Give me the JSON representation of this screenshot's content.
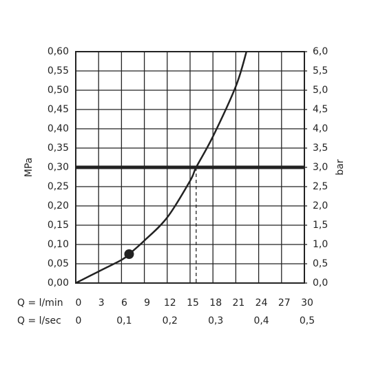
{
  "chart_data": {
    "type": "line",
    "x_label": "Q = l/min",
    "x2_label": "Q = l/sec",
    "y_label": "MPa",
    "y2_label": "bar",
    "xlim": [
      0,
      30
    ],
    "xticks": [
      0,
      3,
      6,
      9,
      12,
      15,
      18,
      21,
      24,
      27,
      30
    ],
    "x2lim": [
      0,
      0.5
    ],
    "x2ticks": [
      0,
      {
        "value": 0.1,
        "label": "0,1"
      },
      {
        "value": 0.2,
        "label": "0,2"
      },
      {
        "value": 0.3,
        "label": "0,3"
      },
      {
        "value": 0.4,
        "label": "0,4"
      },
      {
        "value": 0.5,
        "label": "0,5"
      }
    ],
    "ylim": [
      0,
      0.6
    ],
    "yticks": [
      {
        "value": 0,
        "label": "0,00"
      },
      {
        "value": 0.05,
        "label": "0,05"
      },
      {
        "value": 0.1,
        "label": "0,10"
      },
      {
        "value": 0.15,
        "label": "0,15"
      },
      {
        "value": 0.2,
        "label": "0,20"
      },
      {
        "value": 0.25,
        "label": "0,25"
      },
      {
        "value": 0.3,
        "label": "0,30"
      },
      {
        "value": 0.35,
        "label": "0,35"
      },
      {
        "value": 0.4,
        "label": "0,40"
      },
      {
        "value": 0.45,
        "label": "0,45"
      },
      {
        "value": 0.5,
        "label": "0,50"
      },
      {
        "value": 0.55,
        "label": "0,55"
      },
      {
        "value": 0.6,
        "label": "0,60"
      }
    ],
    "y2lim": [
      0,
      6
    ],
    "y2ticks": [
      {
        "value": 0,
        "label": "0,0"
      },
      {
        "value": 0.5,
        "label": "0,5"
      },
      {
        "value": 1,
        "label": "1,0"
      },
      {
        "value": 1.5,
        "label": "1,5"
      },
      {
        "value": 2,
        "label": "2,0"
      },
      {
        "value": 2.5,
        "label": "2,5"
      },
      {
        "value": 3,
        "label": "3,0"
      },
      {
        "value": 3.5,
        "label": "3,5"
      },
      {
        "value": 4,
        "label": "4,0"
      },
      {
        "value": 4.5,
        "label": "4,5"
      },
      {
        "value": 5,
        "label": "5,0"
      },
      {
        "value": 5.5,
        "label": "5,5"
      },
      {
        "value": 6,
        "label": "6,0"
      }
    ],
    "grid": true,
    "series": [
      {
        "color": "#222222",
        "x": [
          0,
          3,
          6,
          7,
          9,
          12,
          15,
          15.8,
          18,
          21,
          22.4
        ],
        "values": [
          0,
          0.03,
          0.06,
          0.075,
          0.11,
          0.17,
          0.265,
          0.3,
          0.38,
          0.51,
          0.6
        ]
      }
    ],
    "reference_y": 0.3,
    "reference_x": 15.8,
    "marker": {
      "x": 7,
      "y": 0.075
    }
  }
}
